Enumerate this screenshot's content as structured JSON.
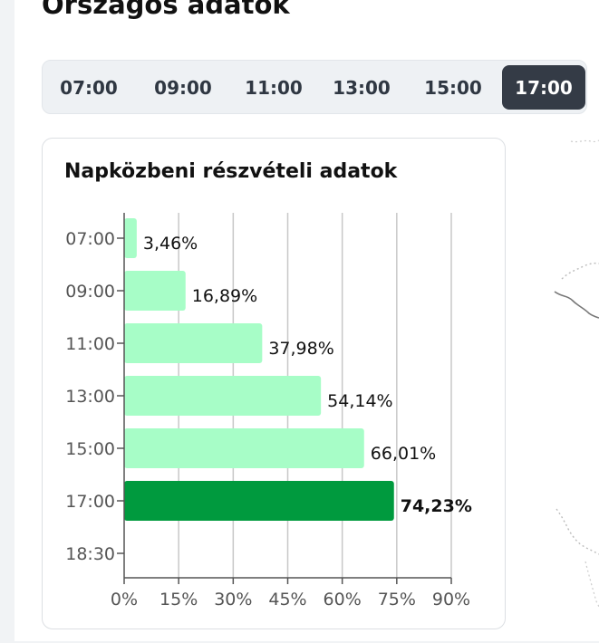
{
  "page_title": "Országos adatok",
  "tabs": [
    {
      "label": "07:00",
      "active": false
    },
    {
      "label": "09:00",
      "active": false
    },
    {
      "label": "11:00",
      "active": false
    },
    {
      "label": "13:00",
      "active": false
    },
    {
      "label": "15:00",
      "active": false
    },
    {
      "label": "17:00",
      "active": true
    }
  ],
  "card": {
    "title": "Napközbeni részvételi adatok"
  },
  "colors": {
    "bar": "#a7fdc7",
    "bar_active": "#009a3e",
    "grid": "#c8c8c8",
    "axis": "#555555",
    "tab_active_bg": "#343b46"
  },
  "chart_data": {
    "type": "bar",
    "orientation": "horizontal",
    "title": "Napközbeni részvételi adatok",
    "categories": [
      "07:00",
      "09:00",
      "11:00",
      "13:00",
      "15:00",
      "17:00",
      "18:30"
    ],
    "values": [
      3.46,
      16.89,
      37.98,
      54.14,
      66.01,
      74.23,
      null
    ],
    "value_labels": [
      "3,46%",
      "16,89%",
      "37,98%",
      "54,14%",
      "66,01%",
      "74,23%",
      ""
    ],
    "highlight_category": "17:00",
    "xlim": [
      0,
      90
    ],
    "xticks": [
      0,
      15,
      30,
      45,
      60,
      75,
      90
    ],
    "xtick_labels": [
      "0%",
      "15%",
      "30%",
      "45%",
      "60%",
      "75%",
      "90%"
    ],
    "grid": true,
    "xlabel": "",
    "ylabel": ""
  }
}
